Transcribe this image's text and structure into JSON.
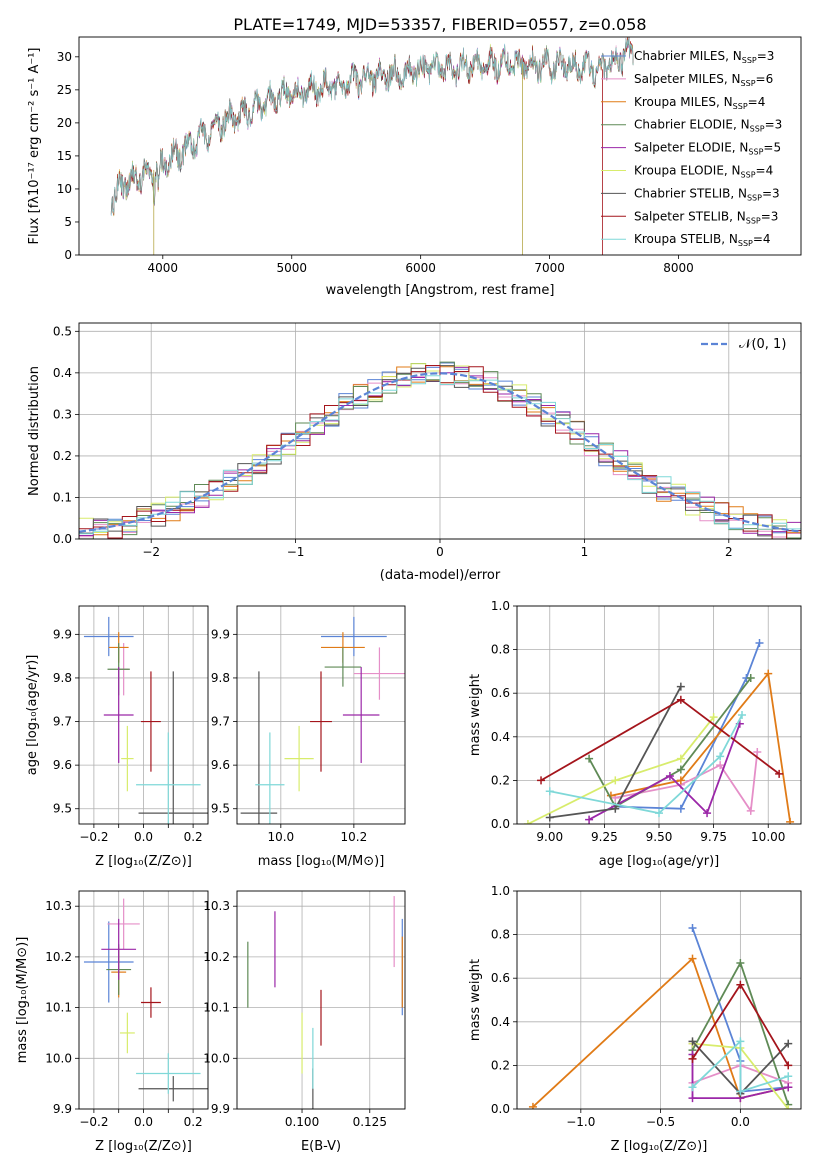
{
  "title": "PLATE=1749, MJD=53357, FIBERID=0557, z=0.058",
  "colors": {
    "s1": "#5b84d6",
    "s2": "#e58fc8",
    "s3": "#e07b17",
    "s4": "#5f8a56",
    "s5": "#9b27a8",
    "s6": "#d8ec6c",
    "s7": "#555555",
    "s8": "#a4151c",
    "s9": "#7fd8d8"
  },
  "chart_data": [
    {
      "id": "spectrum",
      "type": "line",
      "xlabel": "wavelength [Angstrom, rest frame]",
      "ylabel": "Flux [fλ10⁻¹⁷ erg cm⁻² s⁻¹ A⁻¹]",
      "xlim": [
        3350,
        8950
      ],
      "ylim": [
        0,
        33
      ],
      "xticks": [
        4000,
        5000,
        6000,
        7000,
        8000
      ],
      "yticks": [
        0,
        5,
        10,
        15,
        20,
        25,
        30
      ],
      "grid": false,
      "legend_position": "top-right",
      "continuum": [
        [
          3600,
          8
        ],
        [
          3700,
          11
        ],
        [
          3900,
          12.5
        ],
        [
          4100,
          15
        ],
        [
          4300,
          18
        ],
        [
          4500,
          20.5
        ],
        [
          4700,
          22
        ],
        [
          4900,
          24
        ],
        [
          5100,
          24.8
        ],
        [
          5300,
          25.5
        ],
        [
          5500,
          26.5
        ],
        [
          5800,
          27.5
        ],
        [
          6100,
          28.3
        ],
        [
          6400,
          28.7
        ],
        [
          6700,
          29
        ],
        [
          7000,
          28.8
        ],
        [
          7200,
          28.5
        ],
        [
          7400,
          28
        ],
        [
          7600,
          30.5
        ]
      ],
      "dips": [
        [
          3930,
          0
        ],
        [
          6790,
          0
        ],
        [
          7410,
          0
        ]
      ],
      "series": [
        {
          "name": "Chabrier MILES, N",
          "sub": "SSP",
          "suffix": "=3"
        },
        {
          "name": "Salpeter MILES, N",
          "sub": "SSP",
          "suffix": "=6"
        },
        {
          "name": "Kroupa MILES, N",
          "sub": "SSP",
          "suffix": "=4"
        },
        {
          "name": "Chabrier ELODIE, N",
          "sub": "SSP",
          "suffix": "=3"
        },
        {
          "name": "Salpeter ELODIE, N",
          "sub": "SSP",
          "suffix": "=5"
        },
        {
          "name": "Kroupa ELODIE, N",
          "sub": "SSP",
          "suffix": "=4"
        },
        {
          "name": "Chabrier STELIB, N",
          "sub": "SSP",
          "suffix": "=3"
        },
        {
          "name": "Salpeter STELIB, N",
          "sub": "SSP",
          "suffix": "=3"
        },
        {
          "name": "Kroupa STELIB, N",
          "sub": "SSP",
          "suffix": "=4"
        }
      ]
    },
    {
      "id": "residuals",
      "type": "line",
      "xlabel": "(data-model)/error",
      "ylabel": "Normed distribution",
      "xlim": [
        -2.5,
        2.5
      ],
      "ylim": [
        0,
        0.52
      ],
      "xticks": [
        -2,
        -1,
        0,
        1,
        2
      ],
      "yticks": [
        0.0,
        0.1,
        0.2,
        0.3,
        0.4,
        0.5
      ],
      "grid": true,
      "legend_label": "𝒩(0, 1)",
      "legend_position": "top-right",
      "bin_width": 0.1
    },
    {
      "id": "age_vs_Z",
      "type": "errorbar",
      "xlabel": "Z [log₁₀(Z/Z⊙)]",
      "ylabel": "age  [log₁₀(age/yr)]",
      "xlim": [
        -0.26,
        0.26
      ],
      "ylim": [
        9.465,
        9.965
      ],
      "xticks": [
        -0.2,
        -0.1,
        0.0,
        0.1,
        0.2
      ],
      "xticklabels": [
        "−0.2",
        "",
        "0.0",
        "",
        "0.2"
      ],
      "yticks": [
        9.5,
        9.6,
        9.7,
        9.8,
        9.9
      ],
      "points": [
        {
          "x": -0.14,
          "y": 9.895,
          "xerr": 0.1,
          "yerr": 0.045
        },
        {
          "x": -0.08,
          "y": 9.82,
          "xerr": 0.02,
          "yerr": 0.06
        },
        {
          "x": -0.1,
          "y": 9.87,
          "xerr": 0.04,
          "yerr": 0.035
        },
        {
          "x": -0.1,
          "y": 9.82,
          "xerr": 0.045,
          "yerr": 0.06
        },
        {
          "x": -0.1,
          "y": 9.715,
          "xerr": 0.06,
          "yerr": 0.11
        },
        {
          "x": -0.065,
          "y": 9.615,
          "xerr": 0.025,
          "yerr": 0.075
        },
        {
          "x": 0.12,
          "y": 9.49,
          "xerr": 0.14,
          "yerr": 0.325
        },
        {
          "x": 0.03,
          "y": 9.7,
          "xerr": 0.04,
          "yerr": 0.115
        },
        {
          "x": 0.1,
          "y": 9.555,
          "xerr": 0.13,
          "yerr": 0.12
        }
      ]
    },
    {
      "id": "age_vs_mass",
      "type": "errorbar",
      "xlabel": "mass [log₁₀(M/M⊙)]",
      "ylabel": "",
      "xlim": [
        9.88,
        10.34
      ],
      "ylim": [
        9.465,
        9.965
      ],
      "xticks": [
        10.0,
        10.2
      ],
      "yticks": [
        9.5,
        9.6,
        9.7,
        9.8,
        9.9
      ],
      "points": [
        {
          "x": 10.2,
          "y": 9.895,
          "xerr": 0.09,
          "yerr": 0.045
        },
        {
          "x": 10.27,
          "y": 9.81,
          "xerr": 0.07,
          "yerr": 0.06
        },
        {
          "x": 10.17,
          "y": 9.87,
          "xerr": 0.06,
          "yerr": 0.035
        },
        {
          "x": 10.17,
          "y": 9.825,
          "xerr": 0.05,
          "yerr": 0.045
        },
        {
          "x": 10.22,
          "y": 9.715,
          "xerr": 0.05,
          "yerr": 0.11
        },
        {
          "x": 10.05,
          "y": 9.615,
          "xerr": 0.04,
          "yerr": 0.075
        },
        {
          "x": 9.94,
          "y": 9.49,
          "xerr": 0.05,
          "yerr": 0.325
        },
        {
          "x": 10.11,
          "y": 9.7,
          "xerr": 0.03,
          "yerr": 0.115
        },
        {
          "x": 9.97,
          "y": 9.555,
          "xerr": 0.04,
          "yerr": 0.12
        }
      ]
    },
    {
      "id": "weight_vs_age",
      "type": "line",
      "xlabel": "age  [log₁₀(age/yr)]",
      "ylabel": "mass weight",
      "xlim": [
        8.85,
        10.15
      ],
      "ylim": [
        0,
        1.0
      ],
      "xticks": [
        9.0,
        9.25,
        9.5,
        9.75,
        10.0
      ],
      "xticklabels": [
        "9.00",
        "9.25",
        "9.50",
        "9.75",
        "10.00"
      ],
      "yticks": [
        0.0,
        0.2,
        0.4,
        0.6,
        0.8,
        1.0
      ],
      "grid": true,
      "series_values": [
        {
          "x": [
            9.3,
            9.6,
            9.9,
            9.96
          ],
          "y": [
            0.08,
            0.07,
            0.67,
            0.83
          ]
        },
        {
          "x": [
            9.3,
            9.6,
            9.78,
            9.92,
            9.95
          ],
          "y": [
            0.12,
            0.18,
            0.27,
            0.06,
            0.33
          ]
        },
        {
          "x": [
            9.28,
            9.6,
            10.0,
            10.1
          ],
          "y": [
            0.13,
            0.2,
            0.69,
            0.01
          ]
        },
        {
          "x": [
            9.18,
            9.3,
            9.6,
            9.92
          ],
          "y": [
            0.3,
            0.08,
            0.25,
            0.67
          ]
        },
        {
          "x": [
            9.18,
            9.55,
            9.72,
            9.87
          ],
          "y": [
            0.02,
            0.22,
            0.05,
            0.46
          ]
        },
        {
          "x": [
            8.9,
            9.3,
            9.6,
            9.75
          ],
          "y": [
            0.0,
            0.2,
            0.3,
            0.49
          ]
        },
        {
          "x": [
            9.0,
            9.3,
            9.6
          ],
          "y": [
            0.03,
            0.07,
            0.63
          ]
        },
        {
          "x": [
            8.96,
            9.6,
            10.05
          ],
          "y": [
            0.2,
            0.57,
            0.23
          ]
        },
        {
          "x": [
            9.0,
            9.5,
            9.78,
            9.88
          ],
          "y": [
            0.15,
            0.05,
            0.31,
            0.5
          ]
        }
      ]
    },
    {
      "id": "mass_vs_Z",
      "type": "errorbar",
      "xlabel": "Z [log₁₀(Z/Z⊙)]",
      "ylabel": "mass [log₁₀(M/M⊙)]",
      "xlim": [
        -0.26,
        0.26
      ],
      "ylim": [
        9.9,
        10.33
      ],
      "xticks": [
        -0.2,
        -0.1,
        0.0,
        0.1,
        0.2
      ],
      "xticklabels": [
        "−0.2",
        "",
        "0.0",
        "",
        "0.2"
      ],
      "yticks": [
        9.9,
        10.0,
        10.1,
        10.2,
        10.3
      ],
      "points": [
        {
          "x": -0.14,
          "y": 10.19,
          "xerr": 0.1,
          "yerr": 0.08
        },
        {
          "x": -0.08,
          "y": 10.265,
          "xerr": 0.065,
          "yerr": 0.05
        },
        {
          "x": -0.1,
          "y": 10.17,
          "xerr": 0.03,
          "yerr": 0.05
        },
        {
          "x": -0.1,
          "y": 10.175,
          "xerr": 0.05,
          "yerr": 0.05
        },
        {
          "x": -0.1,
          "y": 10.215,
          "xerr": 0.07,
          "yerr": 0.06
        },
        {
          "x": -0.065,
          "y": 10.05,
          "xerr": 0.03,
          "yerr": 0.04
        },
        {
          "x": 0.12,
          "y": 9.94,
          "xerr": 0.14,
          "yerr": 0.025
        },
        {
          "x": 0.03,
          "y": 10.11,
          "xerr": 0.04,
          "yerr": 0.03
        },
        {
          "x": 0.1,
          "y": 9.97,
          "xerr": 0.13,
          "yerr": 0.04
        }
      ]
    },
    {
      "id": "mass_vs_ebv",
      "type": "errorbar",
      "xlabel": "E(B-V)",
      "ylabel": "",
      "xlim": [
        0.076,
        0.138
      ],
      "ylim": [
        9.9,
        10.33
      ],
      "xticks": [
        0.1,
        0.125
      ],
      "xticklabels": [
        "0.100",
        "0.125"
      ],
      "yticks": [
        9.9,
        10.0,
        10.1,
        10.2,
        10.3
      ],
      "points": [
        {
          "x": 0.137,
          "y": 10.18,
          "xerr": 0,
          "yerr": 0.095
        },
        {
          "x": 0.134,
          "y": 10.25,
          "xerr": 0,
          "yerr": 0.07
        },
        {
          "x": 0.137,
          "y": 10.17,
          "xerr": 0,
          "yerr": 0.07
        },
        {
          "x": 0.08,
          "y": 10.165,
          "xerr": 0,
          "yerr": 0.065
        },
        {
          "x": 0.09,
          "y": 10.215,
          "xerr": 0,
          "yerr": 0.075
        },
        {
          "x": 0.1,
          "y": 10.03,
          "xerr": 0,
          "yerr": 0.06
        },
        {
          "x": 0.104,
          "y": 9.94,
          "xerr": 0,
          "yerr": 0.04
        },
        {
          "x": 0.107,
          "y": 10.08,
          "xerr": 0,
          "yerr": 0.055
        },
        {
          "x": 0.104,
          "y": 10.0,
          "xerr": 0,
          "yerr": 0.06
        }
      ]
    },
    {
      "id": "weight_vs_Z",
      "type": "line",
      "xlabel": "Z [log₁₀(Z/Z⊙)]",
      "ylabel": "mass weight",
      "xlim": [
        -1.4,
        0.38
      ],
      "ylim": [
        0,
        1.0
      ],
      "xticks": [
        -1.0,
        -0.5,
        0.0
      ],
      "xticklabels": [
        "−1.0",
        "−0.5",
        "0.0"
      ],
      "yticks": [
        0.0,
        0.2,
        0.4,
        0.6,
        0.8,
        1.0
      ],
      "grid": true,
      "series_values": [
        {
          "x": [
            -0.3,
            0.0,
            0.0,
            0.3
          ],
          "y": [
            0.83,
            0.22,
            0.08,
            0.1
          ]
        },
        {
          "x": [
            -0.3,
            -0.3,
            0.0,
            0.3
          ],
          "y": [
            0.3,
            0.12,
            0.2,
            0.12
          ]
        },
        {
          "x": [
            -1.3,
            -0.3,
            0.0,
            0.3
          ],
          "y": [
            0.01,
            0.69,
            0.05,
            0.1
          ]
        },
        {
          "x": [
            -0.3,
            0.0,
            0.3
          ],
          "y": [
            0.27,
            0.67,
            0.02
          ]
        },
        {
          "x": [
            -0.3,
            -0.3,
            0.0,
            0.3
          ],
          "y": [
            0.25,
            0.05,
            0.05,
            0.1
          ]
        },
        {
          "x": [
            -0.3,
            0.0,
            0.3
          ],
          "y": [
            0.3,
            0.28,
            0.0
          ]
        },
        {
          "x": [
            -0.3,
            0.0,
            0.3
          ],
          "y": [
            0.31,
            0.07,
            0.3
          ]
        },
        {
          "x": [
            -0.3,
            0.0,
            0.3
          ],
          "y": [
            0.23,
            0.57,
            0.2
          ]
        },
        {
          "x": [
            -0.3,
            0.0,
            0.0,
            0.3
          ],
          "y": [
            0.1,
            0.31,
            0.08,
            0.15
          ]
        }
      ]
    }
  ]
}
